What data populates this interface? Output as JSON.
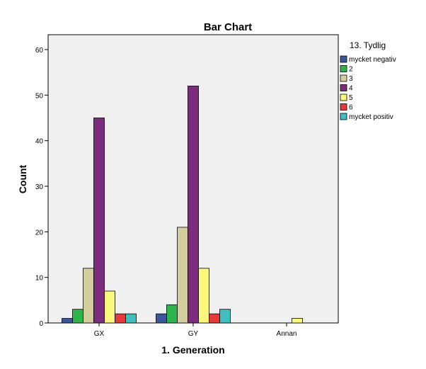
{
  "chart_data": {
    "type": "bar",
    "title": "Bar Chart",
    "xlabel": "1. Generation",
    "ylabel": "Count",
    "categories": [
      "GX",
      "GY",
      "Annan"
    ],
    "ylim": [
      0,
      60
    ],
    "yticks": [
      0,
      10,
      20,
      30,
      40,
      50,
      60
    ],
    "grid": false,
    "legend": {
      "title": "13. Tydlig",
      "placement": "right"
    },
    "series": [
      {
        "name": "mycket negativ",
        "color": "#3b56a0",
        "values": [
          1,
          2,
          0
        ]
      },
      {
        "name": "2",
        "color": "#2db54a",
        "values": [
          3,
          4,
          0
        ]
      },
      {
        "name": "3",
        "color": "#d3ce9e",
        "values": [
          12,
          21,
          0
        ]
      },
      {
        "name": "4",
        "color": "#7b2c7d",
        "values": [
          45,
          52,
          0
        ]
      },
      {
        "name": "5",
        "color": "#fbf77a",
        "values": [
          7,
          12,
          1
        ]
      },
      {
        "name": "6",
        "color": "#e63a3a",
        "values": [
          2,
          2,
          0
        ]
      },
      {
        "name": "mycket positiv",
        "color": "#3fbfbf",
        "values": [
          2,
          3,
          0
        ]
      }
    ]
  }
}
